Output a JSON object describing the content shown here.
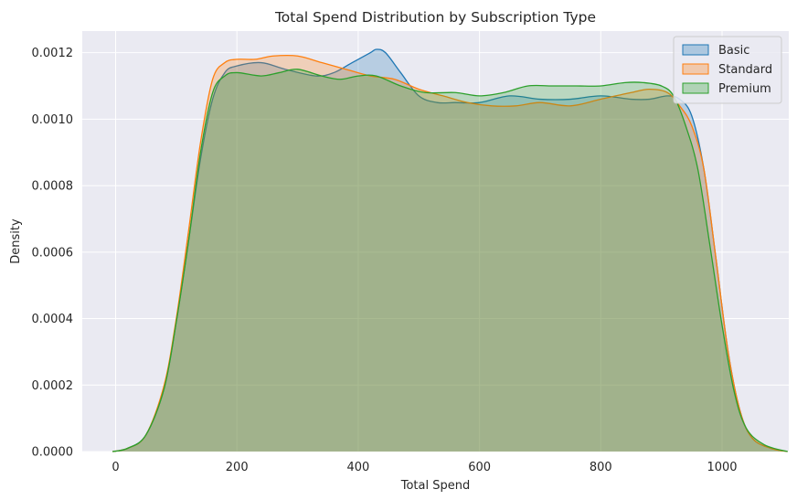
{
  "chart_data": {
    "type": "area",
    "title": "Total Spend Distribution by Subscription Type",
    "xlabel": "Total Spend",
    "ylabel": "Density",
    "xlim": [
      -55,
      1110
    ],
    "ylim": [
      0,
      0.001265
    ],
    "xticks": [
      0,
      200,
      400,
      600,
      800,
      1000
    ],
    "xtick_labels": [
      "0",
      "200",
      "400",
      "600",
      "800",
      "1000"
    ],
    "yticks": [
      0,
      0.0002,
      0.0004,
      0.0006,
      0.0008,
      0.001,
      0.0012
    ],
    "ytick_labels": [
      "0.0000",
      "0.0002",
      "0.0004",
      "0.0006",
      "0.0008",
      "0.0010",
      "0.0012"
    ],
    "grid": true,
    "legend_position": "top-right",
    "series": [
      {
        "name": "Basic",
        "color": "#1f77b4",
        "fill_opacity": 0.25,
        "x": [
          -5,
          20,
          50,
          80,
          100,
          120,
          140,
          160,
          180,
          200,
          240,
          280,
          330,
          360,
          390,
          420,
          430,
          445,
          470,
          500,
          530,
          560,
          600,
          650,
          700,
          750,
          800,
          850,
          880,
          910,
          930,
          950,
          970,
          990,
          1010,
          1030,
          1050,
          1080,
          1108
        ],
        "y": [
          0.0,
          1e-05,
          5e-05,
          0.00019,
          0.00039,
          0.00063,
          0.00088,
          0.00106,
          0.00114,
          0.00116,
          0.00117,
          0.00115,
          0.00113,
          0.00114,
          0.00117,
          0.0012,
          0.00121,
          0.0012,
          0.00114,
          0.00107,
          0.00105,
          0.00105,
          0.00105,
          0.00107,
          0.00106,
          0.00106,
          0.00107,
          0.00106,
          0.00106,
          0.00107,
          0.00106,
          0.00101,
          0.00085,
          0.00058,
          0.0003,
          0.00012,
          4e-05,
          1e-05,
          0.0
        ]
      },
      {
        "name": "Standard",
        "color": "#ff7f0e",
        "fill_opacity": 0.25,
        "x": [
          -5,
          20,
          50,
          80,
          100,
          120,
          140,
          160,
          180,
          200,
          230,
          260,
          300,
          340,
          380,
          420,
          460,
          500,
          540,
          580,
          620,
          660,
          700,
          750,
          800,
          850,
          880,
          910,
          930,
          950,
          970,
          990,
          1010,
          1030,
          1050,
          1080,
          1108
        ],
        "y": [
          0.0,
          1e-05,
          5e-05,
          0.0002,
          0.0004,
          0.00066,
          0.00093,
          0.00112,
          0.00117,
          0.00118,
          0.00118,
          0.00119,
          0.00119,
          0.00117,
          0.00115,
          0.00113,
          0.00112,
          0.00109,
          0.00107,
          0.00105,
          0.00104,
          0.00104,
          0.00105,
          0.00104,
          0.00106,
          0.00108,
          0.00109,
          0.00108,
          0.00104,
          0.00098,
          0.00085,
          0.00058,
          0.0003,
          0.00012,
          4e-05,
          1e-05,
          0.0
        ]
      },
      {
        "name": "Premium",
        "color": "#2ca02c",
        "fill_opacity": 0.25,
        "x": [
          -5,
          20,
          50,
          80,
          100,
          120,
          140,
          160,
          180,
          200,
          240,
          270,
          300,
          340,
          370,
          400,
          430,
          470,
          510,
          560,
          600,
          640,
          680,
          720,
          760,
          800,
          840,
          870,
          900,
          920,
          940,
          960,
          980,
          1000,
          1020,
          1040,
          1070,
          1108
        ],
        "y": [
          0.0,
          1e-05,
          5e-05,
          0.00019,
          0.00039,
          0.00063,
          0.0009,
          0.00108,
          0.00113,
          0.00114,
          0.00113,
          0.00114,
          0.00115,
          0.00113,
          0.00112,
          0.00113,
          0.00113,
          0.0011,
          0.00108,
          0.00108,
          0.00107,
          0.00108,
          0.0011,
          0.0011,
          0.0011,
          0.0011,
          0.00111,
          0.00111,
          0.0011,
          0.00107,
          0.00098,
          0.00085,
          0.00062,
          0.00038,
          0.00018,
          7e-05,
          2e-05,
          0.0
        ]
      }
    ]
  }
}
